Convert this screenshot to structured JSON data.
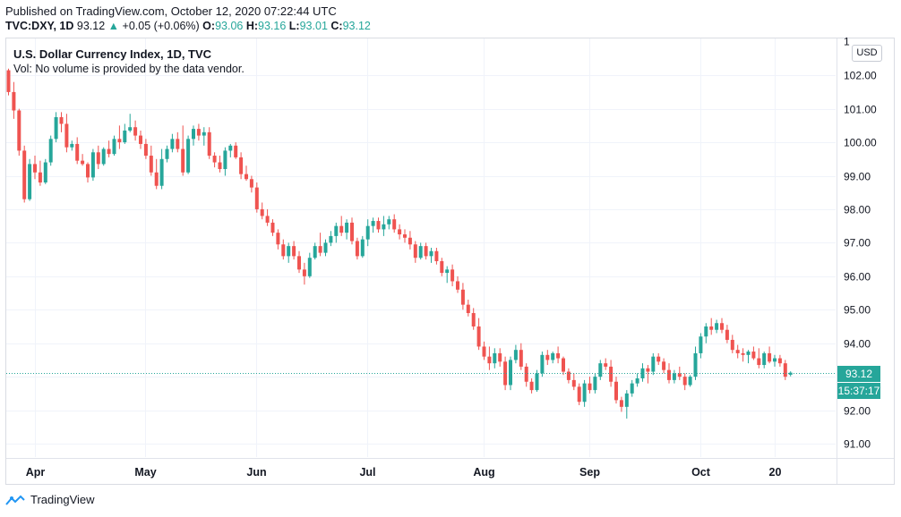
{
  "header": {
    "published": "Published on TradingView.com, October 12, 2020 07:22:44 UTC",
    "symbol": "TVC:DXY, 1D",
    "last": "93.12",
    "change": "+0.05 (+0.06%)",
    "o_label": "O:",
    "o_value": "93.06",
    "h_label": "H:",
    "h_value": "93.16",
    "l_label": "L:",
    "l_value": "93.01",
    "c_label": "C:",
    "c_value": "93.12"
  },
  "legend": {
    "title": "U.S. Dollar Currency Index, 1D, TVC",
    "vol": "Vol: No volume is provided by the data vendor."
  },
  "currency_button": "USD",
  "last_price_tag": "93.12",
  "countdown_tag": "15:37:17",
  "footer": {
    "brand": "TradingView"
  },
  "colors": {
    "up": "#26a69a",
    "down": "#ef5350",
    "grid": "#f0f3fa"
  },
  "chart_data": {
    "type": "candlestick",
    "title": "U.S. Dollar Currency Index, 1D, TVC",
    "y_ticks": [
      "91.00",
      "92.00",
      "93.00",
      "94.00",
      "95.00",
      "96.00",
      "97.00",
      "98.00",
      "99.00",
      "100.00",
      "101.00",
      "102.00"
    ],
    "y_top_label": "1",
    "ylim": [
      90.6,
      103.1
    ],
    "x_ticks": [
      {
        "label": "Apr",
        "index": 5
      },
      {
        "label": "May",
        "index": 26
      },
      {
        "label": "Jun",
        "index": 47
      },
      {
        "label": "Jul",
        "index": 68
      },
      {
        "label": "Aug",
        "index": 90
      },
      {
        "label": "Sep",
        "index": 110
      },
      {
        "label": "Oct",
        "index": 131
      },
      {
        "label": "20",
        "index": 145
      }
    ],
    "last_price": 93.12,
    "candles": [
      [
        102.15,
        102.2,
        101.4,
        101.5
      ],
      [
        101.5,
        101.8,
        100.7,
        100.95
      ],
      [
        100.95,
        101.0,
        99.6,
        99.75
      ],
      [
        99.75,
        99.9,
        98.2,
        98.3
      ],
      [
        98.3,
        99.5,
        98.25,
        99.35
      ],
      [
        99.35,
        99.6,
        98.9,
        99.1
      ],
      [
        99.1,
        99.45,
        98.7,
        98.8
      ],
      [
        98.8,
        99.5,
        98.75,
        99.4
      ],
      [
        99.4,
        100.2,
        99.3,
        100.1
      ],
      [
        100.1,
        100.9,
        100.0,
        100.75
      ],
      [
        100.75,
        100.9,
        100.3,
        100.55
      ],
      [
        100.55,
        100.85,
        99.7,
        99.85
      ],
      [
        99.85,
        100.05,
        99.75,
        99.95
      ],
      [
        99.95,
        100.15,
        99.35,
        99.45
      ],
      [
        99.45,
        99.65,
        99.3,
        99.35
      ],
      [
        99.35,
        99.4,
        98.8,
        98.95
      ],
      [
        98.95,
        99.8,
        98.85,
        99.7
      ],
      [
        99.7,
        99.9,
        99.2,
        99.35
      ],
      [
        99.35,
        99.85,
        99.3,
        99.8
      ],
      [
        99.8,
        100.05,
        99.55,
        99.65
      ],
      [
        99.65,
        100.2,
        99.6,
        100.1
      ],
      [
        100.1,
        100.5,
        99.8,
        100.0
      ],
      [
        100.0,
        100.55,
        99.95,
        100.35
      ],
      [
        100.35,
        100.85,
        100.3,
        100.45
      ],
      [
        100.45,
        100.65,
        100.05,
        100.2
      ],
      [
        100.2,
        100.35,
        99.8,
        99.95
      ],
      [
        99.95,
        100.1,
        99.5,
        99.6
      ],
      [
        99.6,
        99.9,
        99.0,
        99.1
      ],
      [
        99.1,
        99.5,
        98.6,
        98.7
      ],
      [
        98.7,
        99.8,
        98.6,
        99.5
      ],
      [
        99.5,
        99.9,
        99.4,
        99.8
      ],
      [
        99.8,
        100.25,
        99.7,
        100.1
      ],
      [
        100.1,
        100.3,
        99.7,
        99.8
      ],
      [
        99.8,
        100.5,
        99.0,
        99.1
      ],
      [
        99.1,
        100.2,
        99.05,
        100.1
      ],
      [
        100.1,
        100.5,
        99.9,
        100.4
      ],
      [
        100.4,
        100.55,
        100.05,
        100.2
      ],
      [
        100.2,
        100.45,
        99.9,
        100.3
      ],
      [
        100.3,
        100.45,
        99.5,
        99.6
      ],
      [
        99.6,
        99.7,
        99.25,
        99.4
      ],
      [
        99.4,
        99.6,
        99.1,
        99.2
      ],
      [
        99.2,
        99.85,
        99.0,
        99.75
      ],
      [
        99.75,
        99.95,
        99.55,
        99.9
      ],
      [
        99.9,
        100.0,
        99.5,
        99.55
      ],
      [
        99.55,
        99.7,
        98.9,
        99.05
      ],
      [
        99.05,
        99.3,
        98.85,
        98.9
      ],
      [
        98.9,
        99.0,
        98.5,
        98.65
      ],
      [
        98.65,
        98.8,
        97.9,
        98.0
      ],
      [
        98.0,
        98.2,
        97.7,
        97.8
      ],
      [
        97.8,
        98.0,
        97.5,
        97.6
      ],
      [
        97.6,
        97.7,
        97.2,
        97.3
      ],
      [
        97.3,
        97.4,
        96.8,
        96.95
      ],
      [
        96.95,
        97.1,
        96.5,
        96.6
      ],
      [
        96.6,
        97.0,
        96.4,
        96.9
      ],
      [
        96.9,
        97.05,
        96.5,
        96.6
      ],
      [
        96.6,
        96.75,
        96.1,
        96.2
      ],
      [
        96.2,
        96.4,
        95.75,
        96.0
      ],
      [
        96.0,
        96.7,
        95.95,
        96.55
      ],
      [
        96.55,
        97.0,
        96.5,
        96.9
      ],
      [
        96.9,
        97.3,
        96.6,
        96.7
      ],
      [
        96.7,
        97.1,
        96.6,
        97.0
      ],
      [
        97.0,
        97.35,
        96.9,
        97.2
      ],
      [
        97.2,
        97.6,
        97.0,
        97.5
      ],
      [
        97.5,
        97.8,
        97.2,
        97.3
      ],
      [
        97.3,
        97.7,
        97.1,
        97.6
      ],
      [
        97.6,
        97.75,
        96.95,
        97.05
      ],
      [
        97.05,
        97.15,
        96.5,
        96.6
      ],
      [
        96.6,
        97.2,
        96.55,
        97.1
      ],
      [
        97.1,
        97.7,
        96.9,
        97.5
      ],
      [
        97.5,
        97.75,
        97.3,
        97.65
      ],
      [
        97.65,
        97.75,
        97.3,
        97.4
      ],
      [
        97.4,
        97.8,
        97.2,
        97.55
      ],
      [
        97.55,
        97.8,
        97.4,
        97.7
      ],
      [
        97.7,
        97.85,
        97.3,
        97.4
      ],
      [
        97.4,
        97.55,
        97.1,
        97.25
      ],
      [
        97.25,
        97.4,
        97.0,
        97.15
      ],
      [
        97.15,
        97.35,
        96.8,
        96.95
      ],
      [
        96.95,
        97.05,
        96.4,
        96.55
      ],
      [
        96.55,
        97.0,
        96.5,
        96.9
      ],
      [
        96.9,
        97.0,
        96.5,
        96.6
      ],
      [
        96.6,
        96.85,
        96.4,
        96.75
      ],
      [
        96.75,
        96.85,
        96.35,
        96.45
      ],
      [
        96.45,
        96.55,
        96.0,
        96.1
      ],
      [
        96.1,
        96.3,
        95.8,
        96.2
      ],
      [
        96.2,
        96.35,
        95.7,
        95.85
      ],
      [
        95.85,
        96.0,
        95.5,
        95.6
      ],
      [
        95.6,
        95.8,
        95.0,
        95.15
      ],
      [
        95.15,
        95.3,
        94.8,
        94.9
      ],
      [
        94.9,
        95.05,
        94.4,
        94.5
      ],
      [
        94.5,
        94.75,
        93.8,
        93.9
      ],
      [
        93.9,
        94.05,
        93.5,
        93.6
      ],
      [
        93.6,
        93.9,
        93.2,
        93.4
      ],
      [
        93.4,
        93.85,
        93.25,
        93.7
      ],
      [
        93.7,
        93.85,
        93.3,
        93.45
      ],
      [
        93.45,
        93.6,
        92.6,
        92.75
      ],
      [
        92.75,
        93.6,
        92.6,
        93.5
      ],
      [
        93.5,
        93.95,
        93.4,
        93.8
      ],
      [
        93.8,
        94.0,
        93.2,
        93.3
      ],
      [
        93.3,
        93.4,
        92.7,
        92.85
      ],
      [
        92.85,
        92.95,
        92.5,
        92.6
      ],
      [
        92.6,
        93.2,
        92.55,
        93.1
      ],
      [
        93.1,
        93.75,
        93.0,
        93.65
      ],
      [
        93.65,
        93.8,
        93.35,
        93.5
      ],
      [
        93.5,
        93.75,
        93.4,
        93.7
      ],
      [
        93.7,
        93.9,
        93.4,
        93.55
      ],
      [
        93.55,
        93.6,
        93.05,
        93.15
      ],
      [
        93.15,
        93.25,
        92.8,
        92.9
      ],
      [
        92.9,
        93.1,
        92.6,
        92.7
      ],
      [
        92.7,
        92.8,
        92.15,
        92.25
      ],
      [
        92.25,
        92.9,
        92.1,
        92.8
      ],
      [
        92.8,
        93.0,
        92.5,
        92.6
      ],
      [
        92.6,
        93.1,
        92.5,
        93.0
      ],
      [
        93.0,
        93.5,
        92.9,
        93.4
      ],
      [
        93.4,
        93.55,
        93.2,
        93.3
      ],
      [
        93.3,
        93.5,
        92.7,
        92.85
      ],
      [
        92.85,
        93.0,
        92.2,
        92.3
      ],
      [
        92.3,
        92.4,
        91.95,
        92.1
      ],
      [
        92.1,
        92.6,
        91.75,
        92.5
      ],
      [
        92.5,
        92.9,
        92.4,
        92.8
      ],
      [
        92.8,
        93.1,
        92.7,
        92.95
      ],
      [
        92.95,
        93.4,
        92.85,
        93.25
      ],
      [
        93.25,
        93.35,
        92.8,
        93.15
      ],
      [
        93.15,
        93.7,
        93.05,
        93.6
      ],
      [
        93.6,
        93.7,
        93.35,
        93.45
      ],
      [
        93.45,
        93.55,
        93.1,
        93.2
      ],
      [
        93.2,
        93.4,
        92.8,
        92.9
      ],
      [
        92.9,
        93.2,
        92.8,
        93.1
      ],
      [
        93.1,
        93.3,
        92.9,
        93.0
      ],
      [
        93.0,
        93.1,
        92.6,
        92.75
      ],
      [
        92.75,
        93.05,
        92.7,
        93.0
      ],
      [
        93.0,
        93.9,
        92.9,
        93.7
      ],
      [
        93.7,
        94.3,
        93.55,
        94.2
      ],
      [
        94.2,
        94.6,
        94.0,
        94.5
      ],
      [
        94.5,
        94.75,
        94.25,
        94.4
      ],
      [
        94.4,
        94.7,
        94.3,
        94.6
      ],
      [
        94.6,
        94.75,
        94.3,
        94.4
      ],
      [
        94.4,
        94.55,
        94.0,
        94.1
      ],
      [
        94.1,
        94.25,
        93.7,
        93.8
      ],
      [
        93.8,
        93.95,
        93.55,
        93.7
      ],
      [
        93.7,
        93.85,
        93.45,
        93.65
      ],
      [
        93.65,
        93.8,
        93.4,
        93.75
      ],
      [
        93.75,
        93.9,
        93.5,
        93.55
      ],
      [
        93.55,
        93.85,
        93.25,
        93.35
      ],
      [
        93.35,
        93.75,
        93.25,
        93.7
      ],
      [
        93.7,
        93.9,
        93.4,
        93.45
      ],
      [
        93.45,
        93.65,
        93.3,
        93.55
      ],
      [
        93.55,
        93.65,
        93.3,
        93.4
      ],
      [
        93.4,
        93.5,
        92.9,
        93.0
      ],
      [
        93.06,
        93.16,
        93.01,
        93.12
      ]
    ]
  }
}
